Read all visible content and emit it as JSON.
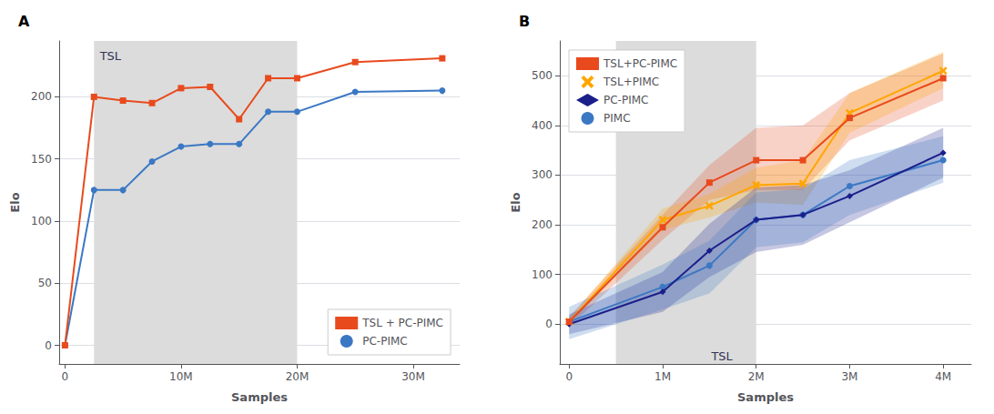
{
  "chart_data": [
    {
      "type": "line",
      "title": "A",
      "xlabel": "Samples",
      "ylabel": "Elo",
      "x": [
        0,
        2500000,
        5000000,
        7500000,
        10000000,
        12500000,
        15000000,
        17500000,
        20000000,
        25000000,
        32500000
      ],
      "series": [
        {
          "name": "TSL + PC-PIMC",
          "color": "#E84A1E",
          "marker": "square",
          "values": [
            0,
            200,
            197,
            195,
            207,
            208,
            182,
            215,
            215,
            228,
            231
          ]
        },
        {
          "name": "PC-PIMC",
          "color": "#3B78C4",
          "marker": "circle",
          "values": [
            0,
            125,
            125,
            148,
            160,
            162,
            162,
            188,
            188,
            204,
            205
          ]
        }
      ],
      "xlim": [
        -500000,
        34000000
      ],
      "xticks": [
        0,
        {
          "value": 10000000,
          "label": "10M"
        },
        {
          "value": 20000000,
          "label": "20M"
        },
        {
          "value": 30000000,
          "label": "30M"
        }
      ],
      "ylim": [
        -15,
        245
      ],
      "yticks": [
        0,
        50,
        100,
        150,
        200
      ],
      "grid": true,
      "legend": "lower right",
      "shaded_region": {
        "start": 2500000,
        "end": 20000000,
        "color": "#DCDCDC"
      },
      "annotations": [
        {
          "text": "TSL",
          "x": 3000000,
          "y": 238
        }
      ]
    },
    {
      "type": "line",
      "title": "B",
      "xlabel": "Samples",
      "ylabel": "Elo",
      "x": [
        0,
        1000000,
        1500000,
        2000000,
        2500000,
        3000000,
        4000000
      ],
      "series": [
        {
          "name": "TSL+PC-PIMC",
          "color": "#E84A1E",
          "marker": "square",
          "values": [
            5,
            195,
            285,
            330,
            330,
            415,
            495
          ],
          "lo": [
            -5,
            170,
            250,
            270,
            270,
            370,
            450
          ],
          "hi": [
            15,
            220,
            320,
            395,
            400,
            465,
            545
          ]
        },
        {
          "name": "TSL+PIMC",
          "color": "#FFA500",
          "marker": "x",
          "values": [
            5,
            210,
            238,
            280,
            283,
            425,
            510
          ],
          "lo": [
            0,
            190,
            215,
            245,
            240,
            385,
            475
          ],
          "hi": [
            12,
            232,
            262,
            315,
            330,
            465,
            548
          ]
        },
        {
          "name": "PC-PIMC",
          "color": "#1B1F8A",
          "marker": "diamond",
          "values": [
            0,
            65,
            148,
            210,
            220,
            258,
            345
          ],
          "lo": [
            -20,
            25,
            95,
            145,
            160,
            205,
            295
          ],
          "hi": [
            20,
            105,
            202,
            275,
            280,
            310,
            395
          ]
        },
        {
          "name": "PIMC",
          "color": "#3B78C4",
          "marker": "circle",
          "values": [
            5,
            75,
            118,
            210,
            220,
            278,
            330
          ],
          "lo": [
            -30,
            30,
            62,
            155,
            165,
            220,
            285
          ],
          "hi": [
            35,
            120,
            168,
            265,
            272,
            330,
            378
          ]
        }
      ],
      "xlim": [
        -100000,
        4300000
      ],
      "xticks": [
        0,
        {
          "value": 1000000,
          "label": "1M"
        },
        {
          "value": 2000000,
          "label": "2M"
        },
        {
          "value": 3000000,
          "label": "3M"
        },
        {
          "value": 4000000,
          "label": "4M"
        }
      ],
      "ylim": [
        -80,
        570
      ],
      "yticks": [
        0,
        100,
        200,
        300,
        400,
        500
      ],
      "grid": true,
      "legend": "upper left",
      "shaded_region": {
        "start": 500000,
        "end": 2000000,
        "color": "#DCDCDC"
      },
      "annotations": [
        {
          "text": "TSL",
          "x": 1520000,
          "y": -52
        }
      ]
    }
  ]
}
